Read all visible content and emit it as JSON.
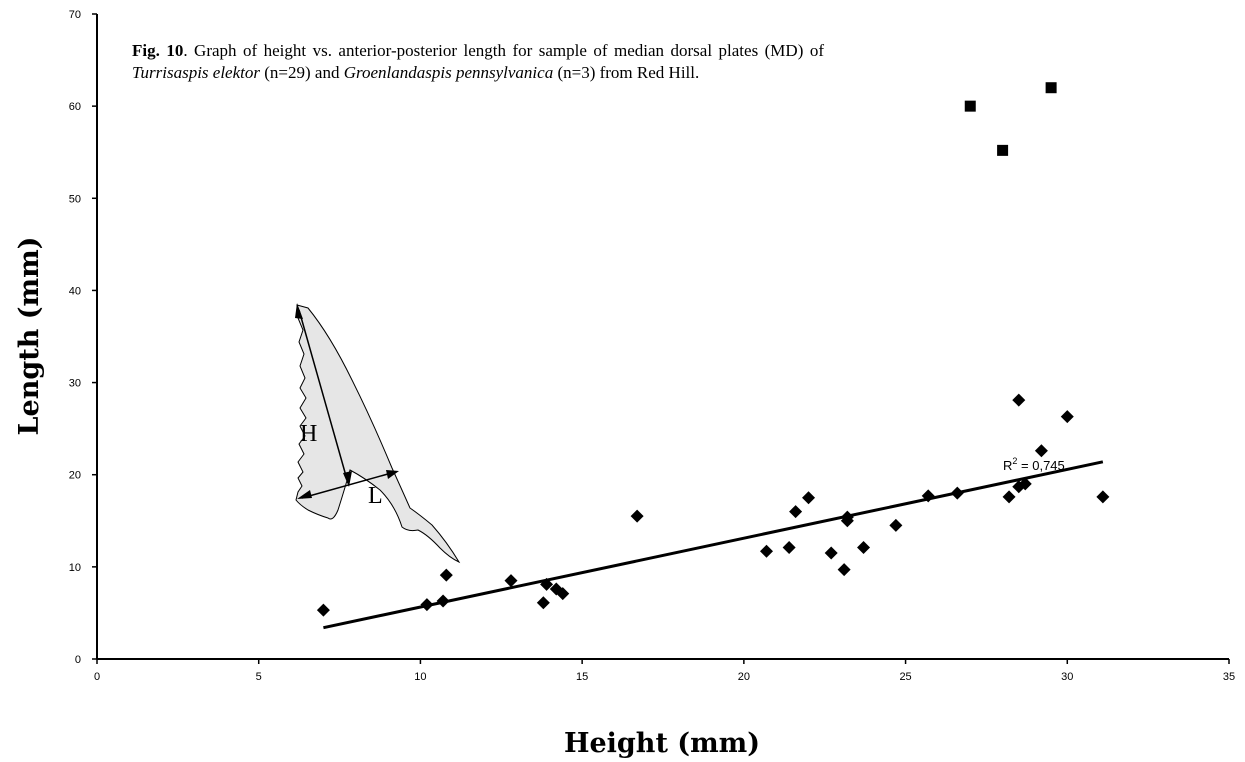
{
  "caption": {
    "fig_label": "Fig. 10",
    "text_1": ". Graph of height vs. anterior-posterior length for sample of median dorsal plates (MD) of ",
    "species_1": "Turrisaspis elektor",
    "text_2": " (n=29) and ",
    "species_2": "Groenlandaspis pennsylvanica",
    "text_3": " (n=3) from Red Hill."
  },
  "chart_data": {
    "type": "scatter",
    "title": "",
    "xlabel": "Height (mm)",
    "ylabel": "Length (mm)",
    "xlim": [
      0,
      35
    ],
    "ylim": [
      0,
      70
    ],
    "xticks": [
      0,
      5,
      10,
      15,
      20,
      25,
      30,
      35
    ],
    "yticks": [
      0,
      10,
      20,
      30,
      40,
      50,
      60,
      70
    ],
    "grid": false,
    "legend": "none",
    "series": [
      {
        "marker": "diamond",
        "color": "#000000",
        "points": [
          [
            7.0,
            5.3
          ],
          [
            10.2,
            5.9
          ],
          [
            10.7,
            6.3
          ],
          [
            10.8,
            9.1
          ],
          [
            12.8,
            8.5
          ],
          [
            13.8,
            6.1
          ],
          [
            13.9,
            8.1
          ],
          [
            14.2,
            7.6
          ],
          [
            14.4,
            7.1
          ],
          [
            16.7,
            15.5
          ],
          [
            20.7,
            11.7
          ],
          [
            21.4,
            12.1
          ],
          [
            21.6,
            16.0
          ],
          [
            22.0,
            17.5
          ],
          [
            22.7,
            11.5
          ],
          [
            23.1,
            9.7
          ],
          [
            23.2,
            15.0
          ],
          [
            23.2,
            15.4
          ],
          [
            23.7,
            12.1
          ],
          [
            24.7,
            14.5
          ],
          [
            25.7,
            17.7
          ],
          [
            26.6,
            18.0
          ],
          [
            28.2,
            17.6
          ],
          [
            28.5,
            28.1
          ],
          [
            28.5,
            18.7
          ],
          [
            28.7,
            19.0
          ],
          [
            29.2,
            22.6
          ],
          [
            30.0,
            26.3
          ],
          [
            31.1,
            17.6
          ]
        ]
      },
      {
        "marker": "square",
        "color": "#000000",
        "points": [
          [
            27.0,
            60.0
          ],
          [
            28.0,
            55.2
          ],
          [
            29.5,
            62.0
          ]
        ]
      }
    ],
    "trendline": {
      "x1": 7.0,
      "y1": 3.4,
      "x2": 31.1,
      "y2": 21.4,
      "label_text": "R",
      "label_sup": "2",
      "label_value": " = 0,745"
    },
    "inset": {
      "label_h": "H",
      "label_l": "L"
    }
  }
}
